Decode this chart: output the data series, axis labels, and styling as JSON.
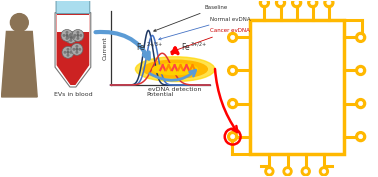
{
  "bg_color": "#ffffff",
  "blue": "#4472C4",
  "dark_blue": "#1F3864",
  "red": "#FF0000",
  "light_blue": "#5B9BD5",
  "gray": "#888888",
  "dark_gray": "#555555",
  "body_color": "#8B7355",
  "yellow_gold": "#FFB800",
  "gold_dark": "#E8A000",
  "text_baseline": "Baseline",
  "text_normal": "Normal evDNA",
  "text_cancer": "Cancer evDNA",
  "text_current": "Current",
  "text_potential": "Potential",
  "text_evs": "EVs in blood",
  "text_evdna": "evDNA detection",
  "figsize": [
    3.78,
    1.77
  ],
  "dpi": 100
}
